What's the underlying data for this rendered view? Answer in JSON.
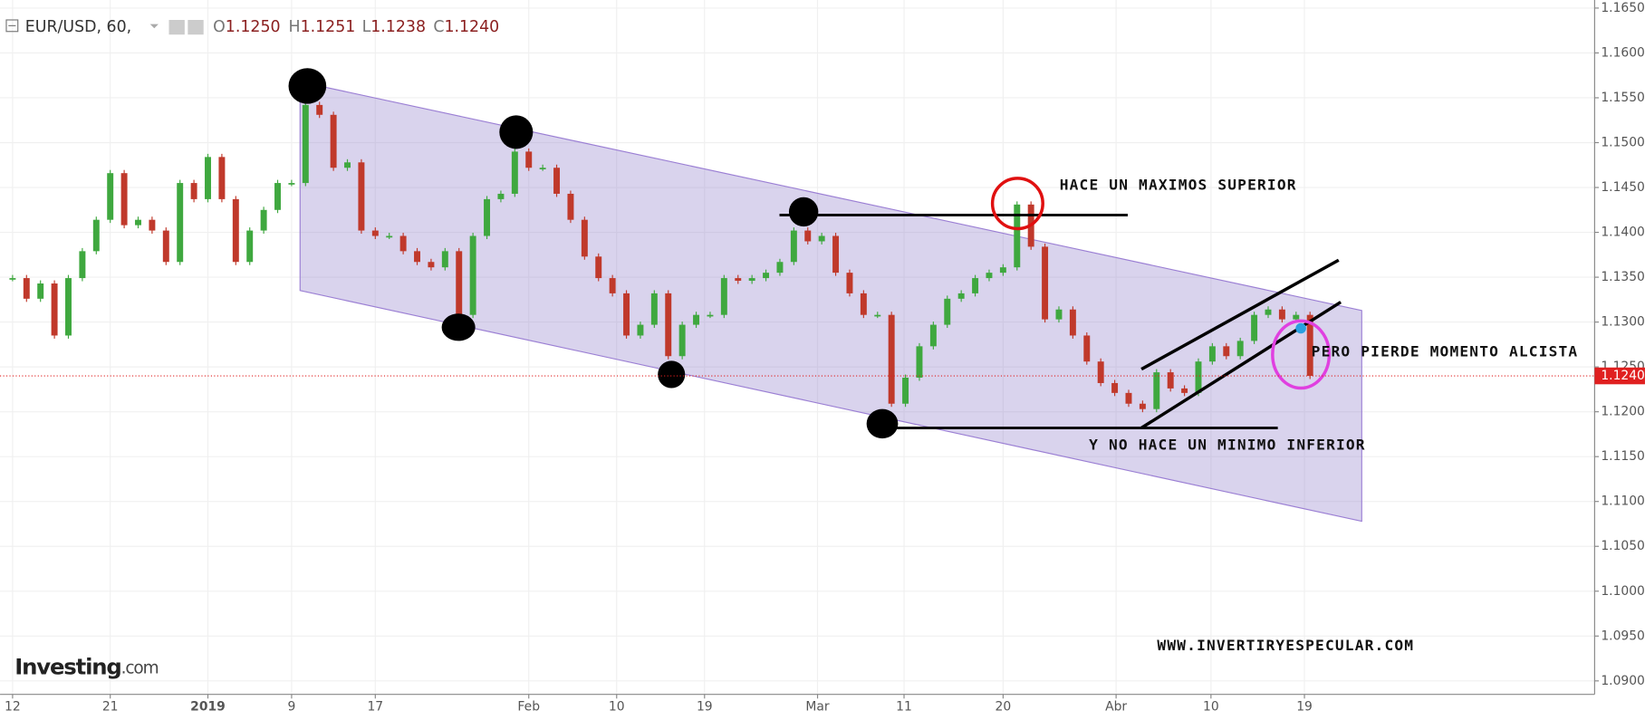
{
  "header": {
    "symbol": "EUR/USD, 60,",
    "open_label": "O",
    "open": "1.1250",
    "high_label": "H",
    "high": "1.1251",
    "low_label": "L",
    "low": "1.1238",
    "close_label": "C",
    "close": "1.1240",
    "logo": "Investing",
    "logo_suffix": ".com"
  },
  "chart_data": {
    "type": "candlestick-close",
    "x": [
      0,
      1,
      2,
      3,
      4,
      5,
      6,
      7,
      8,
      9,
      10,
      11,
      12,
      13,
      14,
      15,
      16,
      17,
      18,
      19,
      20,
      21,
      22,
      23,
      24,
      25,
      26,
      27,
      28,
      29,
      30,
      31,
      32,
      33,
      34,
      35,
      36,
      37,
      38,
      39,
      40,
      41,
      42,
      43,
      44,
      45,
      46,
      47,
      48,
      49,
      50,
      51,
      52,
      53,
      54,
      55,
      56,
      57,
      58,
      59,
      60,
      61,
      62,
      63,
      64,
      65,
      66,
      67,
      68,
      69,
      70,
      71,
      72,
      73,
      74,
      75,
      76,
      77,
      78,
      79,
      80,
      81,
      82,
      83,
      84,
      85,
      86,
      87,
      88,
      89,
      90,
      91,
      92,
      93
    ],
    "values": [
      1.1349,
      1.1326,
      1.1343,
      1.1285,
      1.1349,
      1.1379,
      1.1414,
      1.1466,
      1.1408,
      1.1414,
      1.1402,
      1.1367,
      1.1455,
      1.1437,
      1.1484,
      1.1437,
      1.1367,
      1.1402,
      1.1425,
      1.1455,
      1.1455,
      1.1542,
      1.1531,
      1.1472,
      1.1478,
      1.1402,
      1.1396,
      1.1396,
      1.1379,
      1.1367,
      1.1361,
      1.1379,
      1.1308,
      1.1396,
      1.1437,
      1.1443,
      1.149,
      1.1472,
      1.1472,
      1.1443,
      1.1414,
      1.1373,
      1.1349,
      1.1332,
      1.1285,
      1.1297,
      1.1332,
      1.1262,
      1.1297,
      1.1308,
      1.1308,
      1.1349,
      1.1346,
      1.1349,
      1.1355,
      1.1367,
      1.1402,
      1.139,
      1.1396,
      1.1355,
      1.1332,
      1.1308,
      1.1308,
      1.1209,
      1.1238,
      1.1273,
      1.1297,
      1.1326,
      1.1332,
      1.1349,
      1.1355,
      1.1361,
      1.1431,
      1.1384,
      1.1303,
      1.1314,
      1.1285,
      1.1256,
      1.1232,
      1.1221,
      1.1209,
      1.1203,
      1.1244,
      1.1226,
      1.1221,
      1.1256,
      1.1273,
      1.1262,
      1.1279,
      1.1308,
      1.1314,
      1.1303,
      1.1308,
      1.124
    ],
    "up_color": "#3fa83f",
    "down_color": "#c0392b",
    "xlim": [
      -0.9,
      113.4
    ],
    "xticks": [
      {
        "value": 0,
        "label": "12"
      },
      {
        "value": 7,
        "label": "21"
      },
      {
        "value": 14,
        "label": "2019"
      },
      {
        "value": 20,
        "label": "9"
      },
      {
        "value": 26,
        "label": "17"
      },
      {
        "value": 37,
        "label": "Feb"
      },
      {
        "value": 43.3,
        "label": "10"
      },
      {
        "value": 49.6,
        "label": "19"
      },
      {
        "value": 57.7,
        "label": "Mar"
      },
      {
        "value": 63.9,
        "label": "11"
      },
      {
        "value": 71,
        "label": "20"
      },
      {
        "value": 79.1,
        "label": "Abr"
      },
      {
        "value": 85.9,
        "label": "10"
      },
      {
        "value": 92.6,
        "label": "19"
      }
    ],
    "ylim": [
      1.0885,
      1.1659
    ],
    "yticks": [
      {
        "value": 1.09,
        "label": "1.0900"
      },
      {
        "value": 1.095,
        "label": "1.0950"
      },
      {
        "value": 1.1,
        "label": "1.1000"
      },
      {
        "value": 1.105,
        "label": "1.1050"
      },
      {
        "value": 1.11,
        "label": "1.1100"
      },
      {
        "value": 1.115,
        "label": "1.1150"
      },
      {
        "value": 1.12,
        "label": "1.1200"
      },
      {
        "value": 1.125,
        "label": "1.1250"
      },
      {
        "value": 1.13,
        "label": "1.1300"
      },
      {
        "value": 1.135,
        "label": "1.1350"
      },
      {
        "value": 1.14,
        "label": "1.1400"
      },
      {
        "value": 1.145,
        "label": "1.1450"
      },
      {
        "value": 1.15,
        "label": "1.1500"
      },
      {
        "value": 1.155,
        "label": "1.1550"
      },
      {
        "value": 1.16,
        "label": "1.1600"
      },
      {
        "value": 1.165,
        "label": "1.1650"
      }
    ],
    "last_price": {
      "value": 1.124,
      "label": "1.1240"
    },
    "grid": true,
    "annotations": [
      "HACE UN MAXIMOS SUPERIOR",
      "PERO PIERDE MOMENTO ALCISTA",
      "Y NO HACE UN MINIMO INFERIOR"
    ],
    "watermark": "WWW.INVERTIRYESPECULAR.COM"
  }
}
